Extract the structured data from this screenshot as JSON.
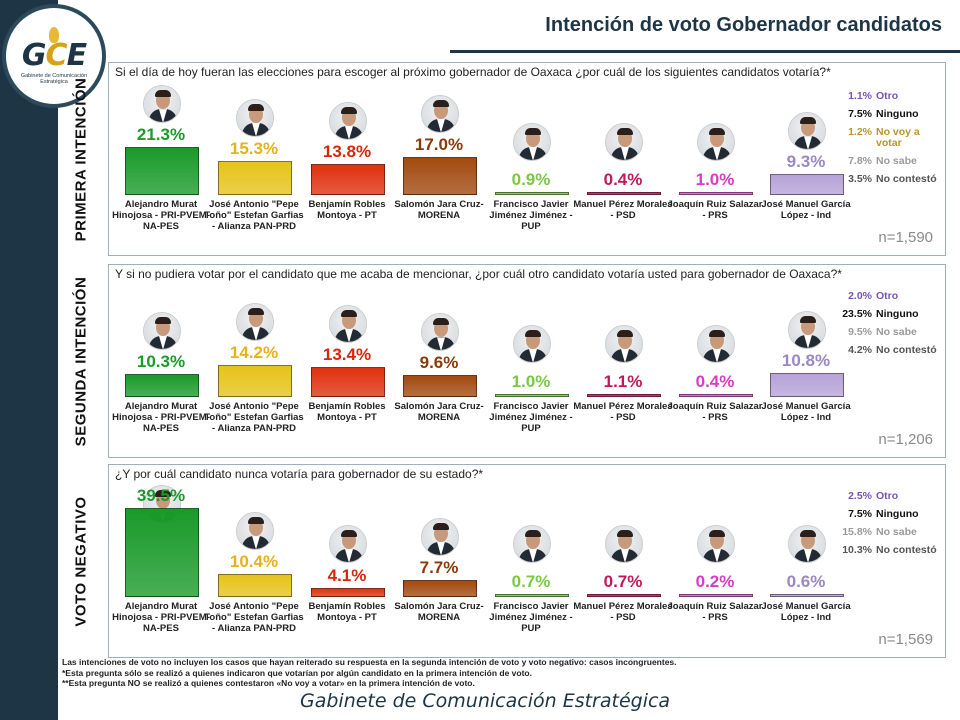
{
  "header": {
    "title": "Intención de voto Gobernador candidatos",
    "logo_text_a": "G",
    "logo_text_b": "C",
    "logo_text_c": "E",
    "logo_subtitle": "Gabinete de Comunicación Estratégica"
  },
  "colors": {
    "green": "#1a9a2a",
    "yellow": "#e6c31a",
    "red": "#e0310f",
    "brown": "#a24a10",
    "lightgreen": "#7ac943",
    "magenta": "#c2185b",
    "violet": "#9b6bc4",
    "lavender": "#b7a3d9",
    "pink": "#e05ad0",
    "navy": "#1d3544"
  },
  "candidates": [
    {
      "name": "Alejandro Murat Hinojosa - PRI-PVEM-NA-PES",
      "color": "#1a9a2a",
      "label_color": "#1a9a2a"
    },
    {
      "name": "José Antonio \"Pepe Toño\" Estefan Garfias - Alianza PAN-PRD",
      "color": "#e6c31a",
      "label_color": "#e6b21a"
    },
    {
      "name": "Benjamín Robles Montoya - PT",
      "color": "#e0310f",
      "label_color": "#d8260b"
    },
    {
      "name": "Salomón Jara Cruz- MORENA",
      "color": "#a24a10",
      "label_color": "#8a3a0a"
    },
    {
      "name": "Francisco Javier Jiménez Jiménez - PUP",
      "color": "#7ac943",
      "label_color": "#7ac943"
    },
    {
      "name": "Manuel Pérez Morales - PSD",
      "color": "#c2185b",
      "label_color": "#c2185b"
    },
    {
      "name": "Joaquín Ruiz Salazar - PRS",
      "color": "#e05ad0",
      "label_color": "#d63ec4"
    },
    {
      "name": "José Manuel García López - Ind",
      "color": "#b7a3d9",
      "label_color": "#9a88c4"
    }
  ],
  "chart_data": [
    {
      "type": "bar",
      "title": "PRIMERA INTENCIÓN",
      "question": "Si el día de hoy fueran las elecciones para escoger al próximo gobernador de Oaxaca ¿por cuál de los siguientes candidatos votaría?*",
      "values": [
        21.3,
        15.3,
        13.8,
        17.0,
        0.9,
        0.4,
        1.0,
        9.3
      ],
      "value_labels": [
        "21.3%",
        "15.3%",
        "13.8%",
        "17.0%",
        "0.9%",
        "0.4%",
        "1.0%",
        "9.3%"
      ],
      "ylim": [
        0,
        40
      ],
      "side": [
        {
          "value": "1.1%",
          "label": "Otro",
          "value_color": "#7a55b0",
          "label_color": "#7a55b0"
        },
        {
          "value": "7.5%",
          "label": "Ninguno",
          "value_color": "#111111",
          "label_color": "#111111"
        },
        {
          "value": "1.2%",
          "label": "No voy a votar",
          "value_color": "#b8962a",
          "label_color": "#b8962a"
        },
        {
          "value": "7.8%",
          "label": "No sabe",
          "value_color": "#9a9a9a",
          "label_color": "#9a9a9a"
        },
        {
          "value": "3.5%",
          "label": "No contestó",
          "value_color": "#555555",
          "label_color": "#555555"
        }
      ],
      "n": "n=1,590"
    },
    {
      "type": "bar",
      "title": "SEGUNDA INTENCIÓN",
      "question": "Y si no pudiera votar por el candidato que me acaba de mencionar, ¿por cuál otro candidato votaría usted para gobernador de Oaxaca?*",
      "values": [
        10.3,
        14.2,
        13.4,
        9.6,
        1.0,
        1.1,
        0.4,
        10.8
      ],
      "value_labels": [
        "10.3%",
        "14.2%",
        "13.4%",
        "9.6%",
        "1.0%",
        "1.1%",
        "0.4%",
        "10.8%"
      ],
      "ylim": [
        0,
        40
      ],
      "side": [
        {
          "value": "2.0%",
          "label": "Otro",
          "value_color": "#7a55b0",
          "label_color": "#7a55b0"
        },
        {
          "value": "23.5%",
          "label": "Ninguno",
          "value_color": "#111111",
          "label_color": "#111111"
        },
        {
          "value": "9.5%",
          "label": "No sabe",
          "value_color": "#9a9a9a",
          "label_color": "#9a9a9a"
        },
        {
          "value": "4.2%",
          "label": "No contestó",
          "value_color": "#555555",
          "label_color": "#555555"
        }
      ],
      "n": "n=1,206"
    },
    {
      "type": "bar",
      "title": "VOTO NEGATIVO",
      "question": "¿Y por cuál candidato nunca votaría para gobernador de su estado?*",
      "values": [
        39.5,
        10.4,
        4.1,
        7.7,
        0.7,
        0.7,
        0.2,
        0.6
      ],
      "value_labels": [
        "39.5%",
        "10.4%",
        "4.1%",
        "7.7%",
        "0.7%",
        "0.7%",
        "0.2%",
        "0.6%"
      ],
      "ylim": [
        0,
        40
      ],
      "side": [
        {
          "value": "2.5%",
          "label": "Otro",
          "value_color": "#7a55b0",
          "label_color": "#7a55b0"
        },
        {
          "value": "7.5%",
          "label": "Ninguno",
          "value_color": "#111111",
          "label_color": "#111111"
        },
        {
          "value": "15.8%",
          "label": "No sabe",
          "value_color": "#9a9a9a",
          "label_color": "#9a9a9a"
        },
        {
          "value": "10.3%",
          "label": "No contestó",
          "value_color": "#555555",
          "label_color": "#555555"
        }
      ],
      "n": "n=1,569"
    }
  ],
  "footnotes": [
    "Las intenciones de voto no incluyen los casos que hayan reiterado su respuesta en la segunda intención de voto y voto negativo: casos incongruentes.",
    "*Esta pregunta sólo se realizó a quienes indicaron que votarían por algún candidato en la primera intención de voto.",
    "**Esta pregunta NO se realizó a quienes contestaron «No voy a votar» en la primera intención de voto."
  ],
  "footer": {
    "brand": "Gabinete de Comunicación Estratégica"
  }
}
